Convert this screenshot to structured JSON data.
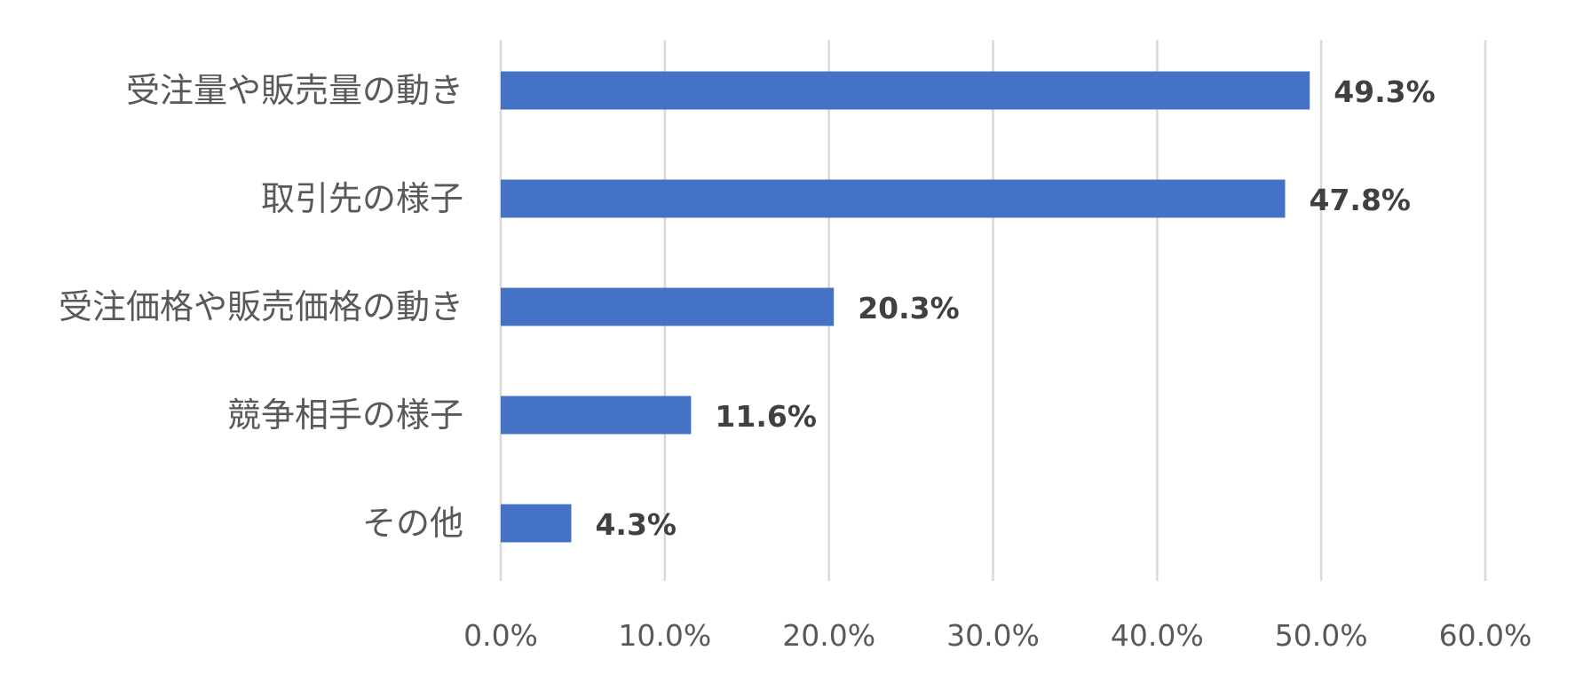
{
  "chart_data": {
    "type": "bar",
    "orientation": "horizontal",
    "categories": [
      "受注量や販売量の動き",
      "取引先の様子",
      "受注価格や販売価格の動き",
      "競争相手の様子",
      "その他"
    ],
    "values": [
      49.3,
      47.8,
      20.3,
      11.6,
      4.3
    ],
    "data_labels": [
      "49.3%",
      "47.8%",
      "20.3%",
      "11.6%",
      "4.3%"
    ],
    "xlim": [
      0,
      60
    ],
    "x_ticks": [
      0,
      10,
      20,
      30,
      40,
      50,
      60
    ],
    "x_tick_labels": [
      "0.0%",
      "10.0%",
      "20.0%",
      "30.0%",
      "40.0%",
      "50.0%",
      "60.0%"
    ],
    "grid": "vertical",
    "legend": "none",
    "bar_color": "#4472c4"
  }
}
